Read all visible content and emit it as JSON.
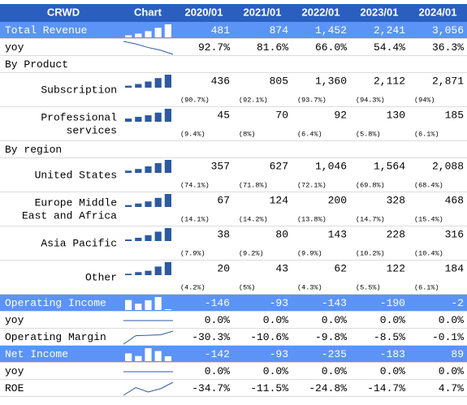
{
  "header": {
    "title": "CRWD",
    "chart": "Chart",
    "periods": [
      "2020/01",
      "2021/01",
      "2022/01",
      "2023/01",
      "2024/01"
    ]
  },
  "rows": [
    {
      "label": "Total Revenue",
      "style": "highlight",
      "spark": "bar",
      "values": [
        "481",
        "874",
        "1,452",
        "2,241",
        "3,056"
      ]
    },
    {
      "label": "yoy",
      "style": "normal",
      "spark": "line",
      "values": [
        "92.7%",
        "81.6%",
        "66.0%",
        "54.4%",
        "36.3%"
      ]
    },
    {
      "label": "By Product",
      "style": "section"
    },
    {
      "label": [
        "Subscription"
      ],
      "style": "sub",
      "spark": "bar",
      "values": [
        "436",
        "805",
        "1,360",
        "2,112",
        "2,871"
      ],
      "shares": [
        "(90.7%)",
        "(92.1%)",
        "(93.7%)",
        "(94.3%)",
        "(94%)"
      ]
    },
    {
      "label": [
        "Professional",
        "services"
      ],
      "style": "sub",
      "spark": "bar",
      "values": [
        "45",
        "70",
        "92",
        "130",
        "185"
      ],
      "shares": [
        "(9.4%)",
        "(8%)",
        "(6.4%)",
        "(5.8%)",
        "(6.1%)"
      ]
    },
    {
      "label": "By region",
      "style": "section"
    },
    {
      "label": [
        "United States"
      ],
      "style": "sub",
      "spark": "bar",
      "values": [
        "357",
        "627",
        "1,046",
        "1,564",
        "2,088"
      ],
      "shares": [
        "(74.1%)",
        "(71.8%)",
        "(72.1%)",
        "(69.8%)",
        "(68.4%)"
      ]
    },
    {
      "label": [
        "Europe Middle",
        "East and Africa"
      ],
      "style": "sub",
      "spark": "bar",
      "values": [
        "67",
        "124",
        "200",
        "328",
        "468"
      ],
      "shares": [
        "(14.1%)",
        "(14.2%)",
        "(13.8%)",
        "(14.7%)",
        "(15.4%)"
      ]
    },
    {
      "label": [
        "Asia Pacific"
      ],
      "style": "sub",
      "spark": "bar",
      "values": [
        "38",
        "80",
        "143",
        "228",
        "316"
      ],
      "shares": [
        "(7.9%)",
        "(9.2%)",
        "(9.9%)",
        "(10.2%)",
        "(10.4%)"
      ]
    },
    {
      "label": [
        "Other"
      ],
      "style": "sub",
      "spark": "bar",
      "values": [
        "20",
        "43",
        "62",
        "122",
        "184"
      ],
      "shares": [
        "(4.2%)",
        "(5%)",
        "(4.3%)",
        "(5.5%)",
        "(6.1%)"
      ]
    },
    {
      "label": "Operating Income",
      "style": "highlight",
      "spark": "bar",
      "values": [
        "-146",
        "-93",
        "-143",
        "-190",
        "-2"
      ]
    },
    {
      "label": "yoy",
      "style": "normal",
      "spark": "line",
      "values": [
        "0.0%",
        "0.0%",
        "0.0%",
        "0.0%",
        "0.0%"
      ]
    },
    {
      "label": "Operating Margin",
      "style": "normal",
      "spark": "line",
      "values": [
        "-30.3%",
        "-10.6%",
        "-9.8%",
        "-8.5%",
        "-0.1%"
      ]
    },
    {
      "label": "Net Income",
      "style": "highlight",
      "spark": "bar",
      "values": [
        "-142",
        "-93",
        "-235",
        "-183",
        "89"
      ]
    },
    {
      "label": "yoy",
      "style": "normal",
      "spark": "line",
      "values": [
        "0.0%",
        "0.0%",
        "0.0%",
        "0.0%",
        "0.0%"
      ]
    },
    {
      "label": "ROE",
      "style": "normal",
      "spark": "line",
      "values": [
        "-34.7%",
        "-11.5%",
        "-24.8%",
        "-14.7%",
        "4.7%"
      ]
    }
  ]
}
